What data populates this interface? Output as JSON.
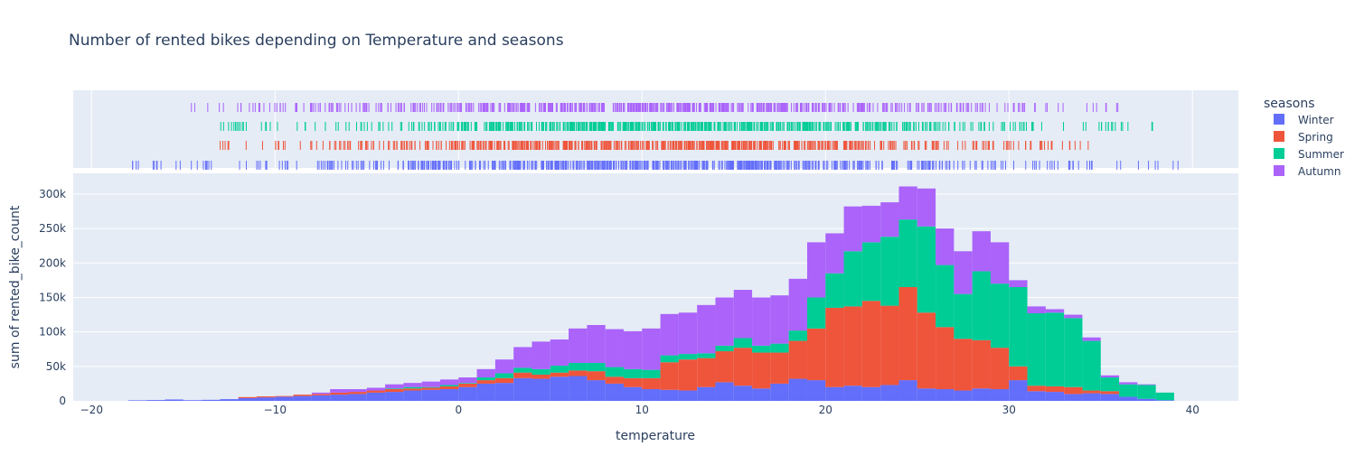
{
  "chart_data": {
    "type": "bar",
    "title": "Number of rented bikes depending on Temperature and seasons",
    "xlabel": "temperature",
    "ylabel": "sum of rented_bike_count",
    "xlim": [
      -21,
      42.5
    ],
    "ylim": [
      0,
      330000
    ],
    "x_ticks": [
      -20,
      -10,
      0,
      10,
      20,
      30,
      40
    ],
    "x_tick_labels": [
      "−20",
      "−10",
      "0",
      "10",
      "20",
      "30",
      "40"
    ],
    "y_ticks": [
      0,
      50000,
      100000,
      150000,
      200000,
      250000,
      300000
    ],
    "y_tick_labels": [
      "0",
      "50k",
      "100k",
      "150k",
      "200k",
      "250k",
      "300k"
    ],
    "barmode": "stack",
    "bin_start": -18,
    "bin_width": 1,
    "bins": [
      -18,
      -17,
      -16,
      -15,
      -14,
      -13,
      -12,
      -11,
      -10,
      -9,
      -8,
      -7,
      -6,
      -5,
      -4,
      -3,
      -2,
      -1,
      0,
      1,
      2,
      3,
      4,
      5,
      6,
      7,
      8,
      9,
      10,
      11,
      12,
      13,
      14,
      15,
      16,
      17,
      18,
      19,
      20,
      21,
      22,
      23,
      24,
      25,
      26,
      27,
      28,
      29,
      30,
      31,
      32,
      33,
      34,
      35,
      36,
      37,
      38,
      39
    ],
    "legend_title": "seasons",
    "legend_position": "right",
    "grid": true,
    "series": [
      {
        "name": "Winter",
        "color": "#636efa",
        "values": [
          800,
          1200,
          2000,
          1000,
          1500,
          2500,
          4000,
          5000,
          6000,
          7000,
          8000,
          9000,
          10000,
          12000,
          13000,
          15000,
          16000,
          17000,
          20000,
          25000,
          26000,
          33000,
          32000,
          35000,
          36000,
          30000,
          25000,
          20000,
          17000,
          16000,
          15000,
          20000,
          27000,
          22000,
          18000,
          25000,
          32000,
          30000,
          20000,
          22000,
          20000,
          23000,
          30000,
          18000,
          17000,
          15000,
          18000,
          17000,
          30000,
          14000,
          13000,
          10000,
          11000,
          10000,
          6000,
          3000,
          1000,
          0
        ]
      },
      {
        "name": "Spring",
        "color": "#ef553b",
        "values": [
          0,
          0,
          0,
          0,
          0,
          0,
          1500,
          1500,
          1000,
          2000,
          2000,
          3000,
          3000,
          3000,
          4000,
          3000,
          3000,
          4000,
          5000,
          5000,
          7000,
          8000,
          6000,
          6000,
          8000,
          13000,
          10000,
          13000,
          16000,
          40000,
          45000,
          42000,
          45000,
          55000,
          52000,
          45000,
          55000,
          75000,
          115000,
          115000,
          125000,
          115000,
          135000,
          110000,
          90000,
          75000,
          70000,
          60000,
          20000,
          8000,
          8000,
          10000,
          4000,
          4000,
          0,
          0,
          0,
          0
        ]
      },
      {
        "name": "Summer",
        "color": "#00cc96",
        "values": [
          0,
          0,
          0,
          0,
          0,
          0,
          0,
          0,
          0,
          0,
          0,
          0,
          0,
          0,
          1000,
          2000,
          1000,
          2000,
          1000,
          4000,
          7000,
          7000,
          8000,
          10000,
          11000,
          12000,
          14000,
          13000,
          12000,
          10000,
          8000,
          7000,
          8000,
          14000,
          10000,
          13000,
          15000,
          45000,
          50000,
          80000,
          85000,
          100000,
          98000,
          125000,
          90000,
          65000,
          100000,
          93000,
          115000,
          105000,
          107000,
          100000,
          72000,
          20000,
          18000,
          20000,
          11000,
          0
        ]
      },
      {
        "name": "Autumn",
        "color": "#ab63fa",
        "values": [
          0,
          0,
          0,
          0,
          0,
          0,
          0,
          0,
          0,
          0,
          2000,
          5000,
          4000,
          4000,
          6000,
          6000,
          8000,
          8000,
          8000,
          12000,
          20000,
          30000,
          40000,
          38000,
          50000,
          55000,
          55000,
          55000,
          60000,
          60000,
          60000,
          70000,
          70000,
          70000,
          70000,
          70000,
          75000,
          80000,
          58000,
          65000,
          53000,
          50000,
          48000,
          55000,
          53000,
          62000,
          58000,
          60000,
          10000,
          10000,
          5000,
          5000,
          5000,
          3000,
          3000,
          1000,
          0,
          0
        ]
      }
    ]
  },
  "legend": {
    "title": "seasons",
    "items": [
      {
        "label": "Winter",
        "color": "#636efa"
      },
      {
        "label": "Spring",
        "color": "#ef553b"
      },
      {
        "label": "Summer",
        "color": "#00cc96"
      },
      {
        "label": "Autumn",
        "color": "#ab63fa"
      }
    ]
  },
  "rug": {
    "Autumn": {
      "min": -15,
      "max": 36.5
    },
    "Summer": {
      "min": -13.5,
      "max": 38
    },
    "Spring": {
      "min": -13,
      "max": 35
    },
    "Winter": {
      "min": -17.8,
      "max": 39.4
    }
  }
}
